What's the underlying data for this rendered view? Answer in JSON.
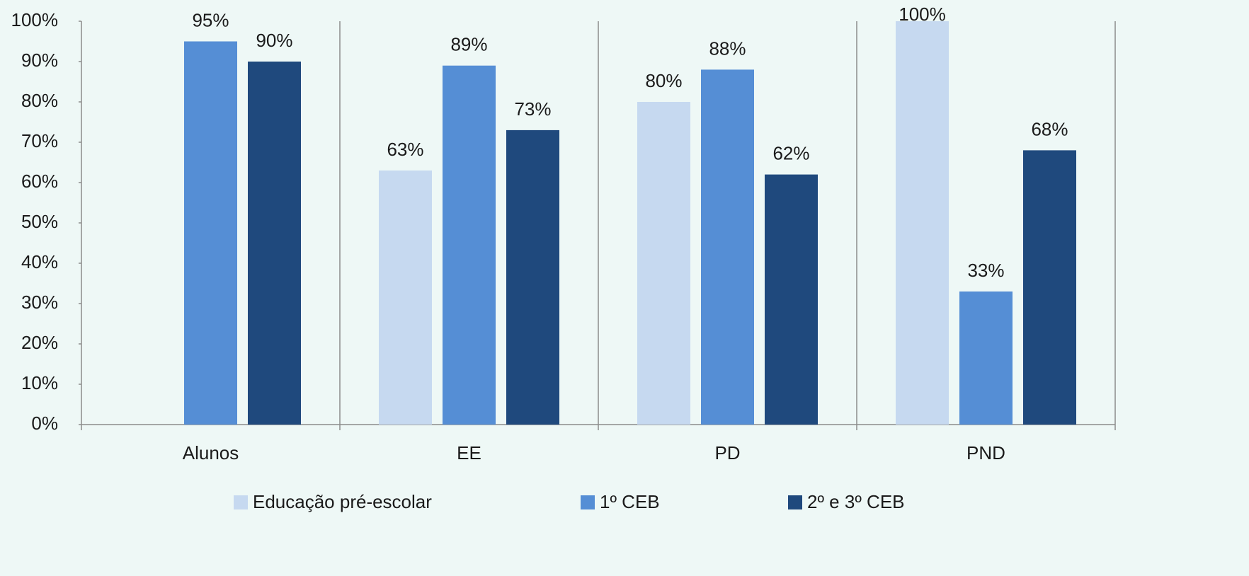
{
  "chart_data": {
    "type": "bar",
    "categories": [
      "Alunos",
      "EE",
      "PD",
      "PND"
    ],
    "series": [
      {
        "name": "Educação pré-escolar",
        "color": "#c6d9f0",
        "values": [
          null,
          63,
          80,
          100
        ],
        "value_labels": [
          null,
          "63%",
          "80%",
          "100%"
        ]
      },
      {
        "name": "1º CEB",
        "color": "#558ed5",
        "values": [
          95,
          89,
          88,
          33
        ],
        "value_labels": [
          "95%",
          "89%",
          "88%",
          "33%"
        ]
      },
      {
        "name": "2º e 3º CEB",
        "color": "#1f497d",
        "values": [
          90,
          73,
          62,
          68
        ],
        "value_labels": [
          "90%",
          "73%",
          "62%",
          "68%"
        ]
      }
    ],
    "ylim": [
      0,
      100
    ],
    "yticks": [
      {
        "value": 0,
        "label": "0%"
      },
      {
        "value": 10,
        "label": "10%"
      },
      {
        "value": 20,
        "label": "20%"
      },
      {
        "value": 30,
        "label": "30%"
      },
      {
        "value": 40,
        "label": "40%"
      },
      {
        "value": 50,
        "label": "50%"
      },
      {
        "value": 60,
        "label": "60%"
      },
      {
        "value": 70,
        "label": "70%"
      },
      {
        "value": 80,
        "label": "80%"
      },
      {
        "value": 90,
        "label": "90%"
      },
      {
        "value": 100,
        "label": "100%"
      }
    ],
    "grid": false,
    "legend": "bottom"
  }
}
